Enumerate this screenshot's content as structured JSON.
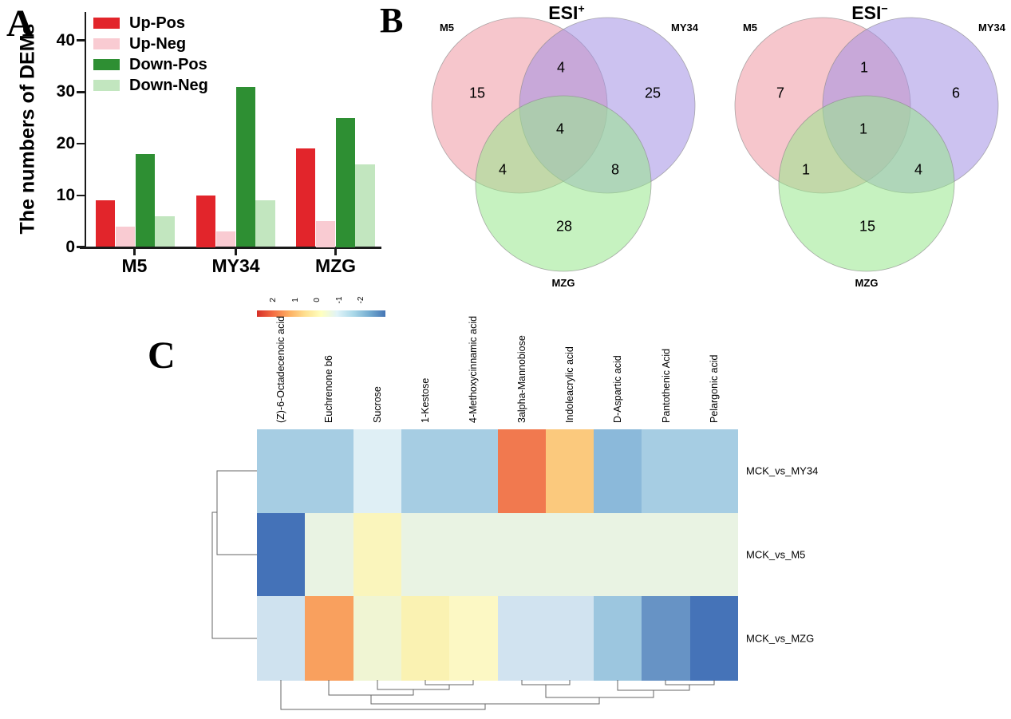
{
  "panels": {
    "a": "A",
    "b": "B",
    "c": "C"
  },
  "chart_data": [
    {
      "type": "bar",
      "panel": "A",
      "title": "",
      "xlabel": "",
      "ylabel": "The numbers of DEMs",
      "categories": [
        "M5",
        "MY34",
        "MZG"
      ],
      "series": [
        {
          "name": "Up-Pos",
          "color": "#E2252B",
          "values": [
            9,
            10,
            19
          ]
        },
        {
          "name": "Up-Neg",
          "color": "#F9CBD2",
          "values": [
            4,
            3,
            5
          ]
        },
        {
          "name": "Down-Pos",
          "color": "#2E8F33",
          "values": [
            18,
            31,
            25
          ]
        },
        {
          "name": "Down-Neg",
          "color": "#C2E6BF",
          "values": [
            6,
            9,
            16
          ]
        }
      ],
      "ylim": [
        0,
        45
      ],
      "yticks": [
        0,
        10,
        20,
        30,
        40
      ],
      "grid": false,
      "legend_position": "top-left"
    },
    {
      "type": "venn",
      "panel": "B",
      "title_base": "ESI",
      "title_sup": "+",
      "sets": [
        "M5",
        "MY34",
        "MZG"
      ],
      "set_colors": {
        "m5": "#EF97A2",
        "my34": "#A28FE4",
        "mzg": "#97E78C"
      },
      "counts": {
        "m5_only": 15,
        "my34_only": 25,
        "mzg_only": 28,
        "m5_my34": 4,
        "m5_mzg": 4,
        "my34_mzg": 8,
        "all": 4
      }
    },
    {
      "type": "venn",
      "panel": "B",
      "title_base": "ESI",
      "title_sup": "−",
      "sets": [
        "M5",
        "MY34",
        "MZG"
      ],
      "set_colors": {
        "m5": "#EF97A2",
        "my34": "#A28FE4",
        "mzg": "#97E78C"
      },
      "counts": {
        "m5_only": 7,
        "my34_only": 6,
        "mzg_only": 15,
        "m5_my34": 1,
        "m5_mzg": 1,
        "my34_mzg": 4,
        "all": 1
      }
    },
    {
      "type": "heatmap",
      "panel": "C",
      "columns": [
        "(Z)-6-Octadecenoic acid",
        "Euchrenone b6",
        "Sucrose",
        "1-Kestose",
        "4-Methoxycinnamic acid",
        "3alpha-Mannobiose",
        "Indoleacrylic acid",
        "D-Aspartic acid",
        "Pantothenic Acid",
        "Pelargonic acid"
      ],
      "rows": [
        "MCK_vs_MY34",
        "MCK_vs_M5",
        "MCK_vs_MZG"
      ],
      "values": [
        [
          -1.0,
          -1.0,
          -0.3,
          -1.0,
          -1.0,
          1.6,
          1.0,
          -1.3,
          -1.0,
          -1.0
        ],
        [
          -2.0,
          0.0,
          0.45,
          0.0,
          0.0,
          0.0,
          0.0,
          0.0,
          0.0,
          0.0
        ],
        [
          -0.55,
          1.35,
          0.15,
          0.5,
          0.4,
          -0.5,
          -0.5,
          -1.1,
          -1.7,
          -2.0
        ]
      ],
      "cell_colors": [
        [
          "#A6CDE3",
          "#A6CDE3",
          "#DFEFF5",
          "#A6CDE3",
          "#A6CDE3",
          "#F1794F",
          "#FBC97D",
          "#8BB9DA",
          "#A6CDE3",
          "#A6CDE3"
        ],
        [
          "#4472B8",
          "#E9F3E3",
          "#FAF5BC",
          "#E9F3E3",
          "#E9F3E3",
          "#E9F3E3",
          "#E9F3E3",
          "#E9F3E3",
          "#E9F3E3",
          "#E9F3E3"
        ],
        [
          "#CFE2EF",
          "#F9A05E",
          "#F0F5D3",
          "#FAF2B2",
          "#FCF8C4",
          "#D1E3F0",
          "#D1E3F0",
          "#9CC6DF",
          "#6793C5",
          "#4573B8"
        ]
      ],
      "colorbar": {
        "tick_labels": [
          "2",
          "1",
          "0",
          "-1",
          "-2"
        ],
        "gradient": [
          "#D62F27",
          "#F46D43",
          "#FDAE61",
          "#FEE090",
          "#FFFFBF",
          "#E0F3F8",
          "#ABD9E9",
          "#74ADD1",
          "#4575B4"
        ],
        "range": [
          2,
          -2
        ]
      },
      "row_dendrogram": "((MCK_vs_MY34,MCK_vs_M5),MCK_vs_MZG)",
      "col_dendrogram": "((Z)-6-Octadecenoic acid,((Euchrenone b6,(Sucrose,(1-Kestose,4-Methoxycinnamic acid))),((3alpha-Mannobiose,Indoleacrylic acid),(D-Aspartic acid,(Pantothenic Acid,Pelargonic acid)))))"
    }
  ]
}
